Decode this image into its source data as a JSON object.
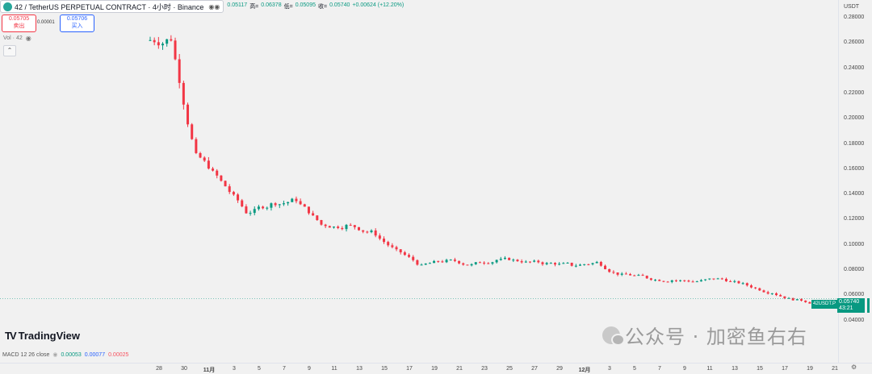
{
  "header": {
    "symbol_title": "42 / TetherUS PERPETUAL CONTRACT · 4小时 · Binance",
    "eye_icon_label": "◉◉",
    "ohlc": {
      "open_value": "0.05117",
      "high_label": "高=",
      "high_value": "0.06378",
      "low_label": "低=",
      "low_value": "0.05095",
      "close_label": "收=",
      "close_value": "0.05740",
      "change": "+0.00624 (+12.20%)"
    }
  },
  "trade": {
    "sell_price": "0.05705",
    "sell_label": "卖出",
    "spread": "0.00001",
    "buy_price": "0.05706",
    "buy_label": "买入"
  },
  "volume_label": "Vol · 42",
  "collapse_icon": "⌃",
  "tv_logo_text": "TradingView",
  "macd": {
    "label": "MACD 12 26 close",
    "v1": "0.00053",
    "v2": "0.00077",
    "v3": "0.00025"
  },
  "price_axis": {
    "currency": "USDT",
    "ticks": [
      "0.28000",
      "0.26000",
      "0.24000",
      "0.22000",
      "0.20000",
      "0.18000",
      "0.16000",
      "0.14000",
      "0.12000",
      "0.10000",
      "0.08000",
      "0.06000",
      "0.04000"
    ]
  },
  "current_price_tag": {
    "symbol": "42USDT.P",
    "price": "0.05740",
    "countdown": "43:21"
  },
  "time_axis": {
    "ticks": [
      "28",
      "30",
      "11月",
      "3",
      "5",
      "7",
      "9",
      "11",
      "13",
      "15",
      "17",
      "19",
      "21",
      "23",
      "25",
      "27",
      "29",
      "12月",
      "3",
      "5",
      "7",
      "9",
      "11",
      "13",
      "15",
      "17",
      "19",
      "21"
    ]
  },
  "watermark_text": "公众号 · 加密鱼右右",
  "chart_data": {
    "type": "candlestick",
    "y_unit": "USDT",
    "ylim": [
      0.03,
      0.285
    ],
    "colors": {
      "up": "#089981",
      "down": "#f23645"
    },
    "x": [
      "10-27",
      "10-28",
      "10-29",
      "10-30",
      "10-31",
      "11-01",
      "11-02",
      "11-03",
      "11-04",
      "11-05",
      "11-06",
      "11-07",
      "11-08",
      "11-09",
      "11-10",
      "11-11",
      "11-12",
      "11-13",
      "11-14",
      "11-15",
      "11-16",
      "11-17",
      "11-18",
      "11-19",
      "11-20",
      "11-21",
      "11-22",
      "11-23",
      "11-24",
      "11-25",
      "11-26",
      "11-27",
      "11-28",
      "11-29",
      "11-30",
      "12-01",
      "12-02",
      "12-03",
      "12-04",
      "12-05",
      "12-06",
      "12-07",
      "12-08",
      "12-09",
      "12-10",
      "12-11",
      "12-12"
    ],
    "close": [
      0.264,
      0.17,
      0.15,
      0.126,
      0.132,
      0.136,
      0.116,
      0.115,
      0.11,
      0.095,
      0.083,
      0.087,
      0.084,
      0.088,
      0.087,
      0.085,
      0.084,
      0.086,
      0.076,
      0.074,
      0.072,
      0.071,
      0.073,
      0.068,
      0.062,
      0.056,
      0.053,
      0.051,
      0.055,
      0.058,
      0.062,
      0.06,
      0.055,
      0.055,
      0.054,
      0.048,
      0.049,
      0.052,
      0.051,
      0.051,
      0.05,
      0.049,
      0.051,
      0.052,
      0.053,
      0.051,
      0.0574
    ]
  }
}
